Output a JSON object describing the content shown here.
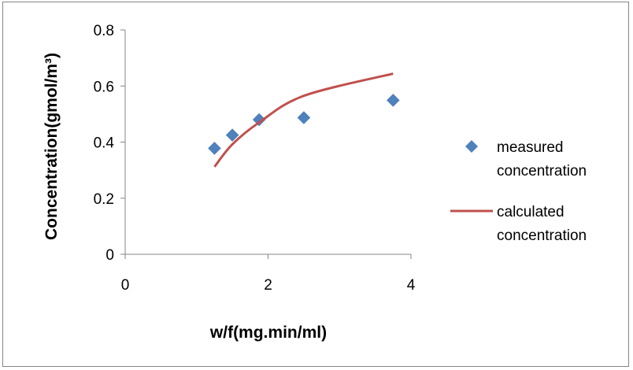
{
  "chart_data": {
    "type": "scatter",
    "xlabel": "w/f(mg.min/ml)",
    "ylabel": "Concentration(gmol/m³)",
    "xlim": [
      0,
      4
    ],
    "ylim": [
      0,
      0.8
    ],
    "x_ticks": [
      0,
      2,
      4
    ],
    "y_ticks": [
      0,
      0.2,
      0.4,
      0.6,
      0.8
    ],
    "x_tick_labels": [
      "0",
      "2",
      "4"
    ],
    "y_tick_labels": [
      "0",
      "0.2",
      "0.4",
      "0.6",
      "0.8"
    ],
    "grid": false,
    "legend_position": "right",
    "series": [
      {
        "name": "measured concentration",
        "type": "scatter",
        "marker": "diamond",
        "color": "#4F81BD",
        "x": [
          1.25,
          1.5,
          1.875,
          2.5,
          3.75
        ],
        "y": [
          0.378,
          0.425,
          0.48,
          0.487,
          0.549
        ]
      },
      {
        "name": "calculated concentration",
        "type": "line",
        "color": "#C0504D",
        "x": [
          1.25,
          1.5,
          1.875,
          2.5,
          3.75
        ],
        "y": [
          0.312,
          0.392,
          0.47,
          0.565,
          0.644
        ]
      }
    ]
  }
}
